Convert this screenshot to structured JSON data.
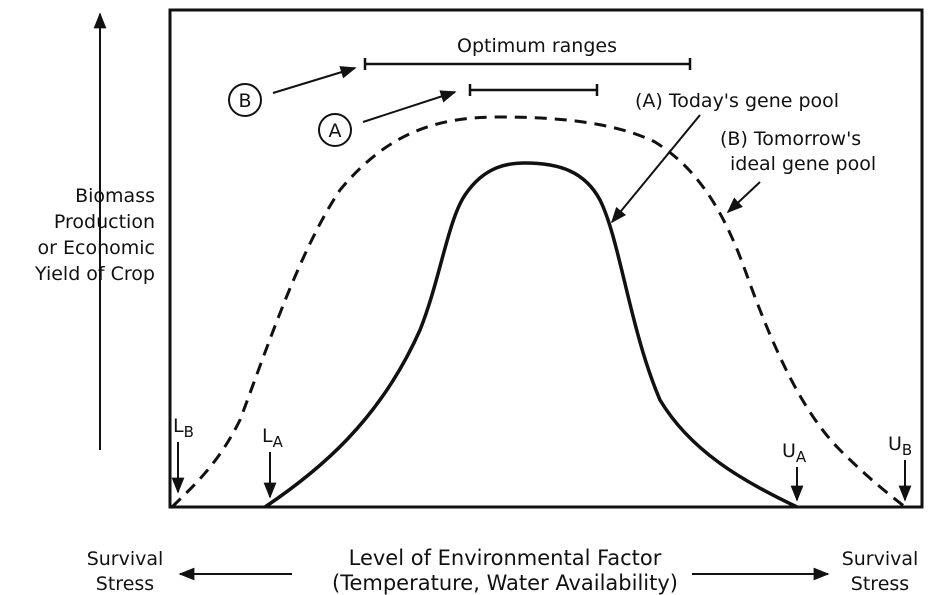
{
  "title": "Optimum ranges",
  "circle_labels": {
    "b": "B",
    "a": "A"
  },
  "curve_labels": {
    "a": "(A) Today's gene pool",
    "b_line1": "(B) Tomorrow's",
    "b_line2": "ideal gene pool"
  },
  "y_label": [
    "Biomass",
    "Production",
    "or Economic",
    "Yield of Crop"
  ],
  "limits": {
    "lb": {
      "main": "L",
      "sub": "B"
    },
    "la": {
      "main": "L",
      "sub": "A"
    },
    "ua": {
      "main": "U",
      "sub": "A"
    },
    "ub": {
      "main": "U",
      "sub": "B"
    }
  },
  "x_label": {
    "line1": "Level of Environmental Factor",
    "line2": "(Temperature, Water Availability)"
  },
  "left_end": {
    "line1": "Survival",
    "line2": "Stress"
  },
  "right_end": {
    "line1": "Survival",
    "line2": "Stress"
  }
}
